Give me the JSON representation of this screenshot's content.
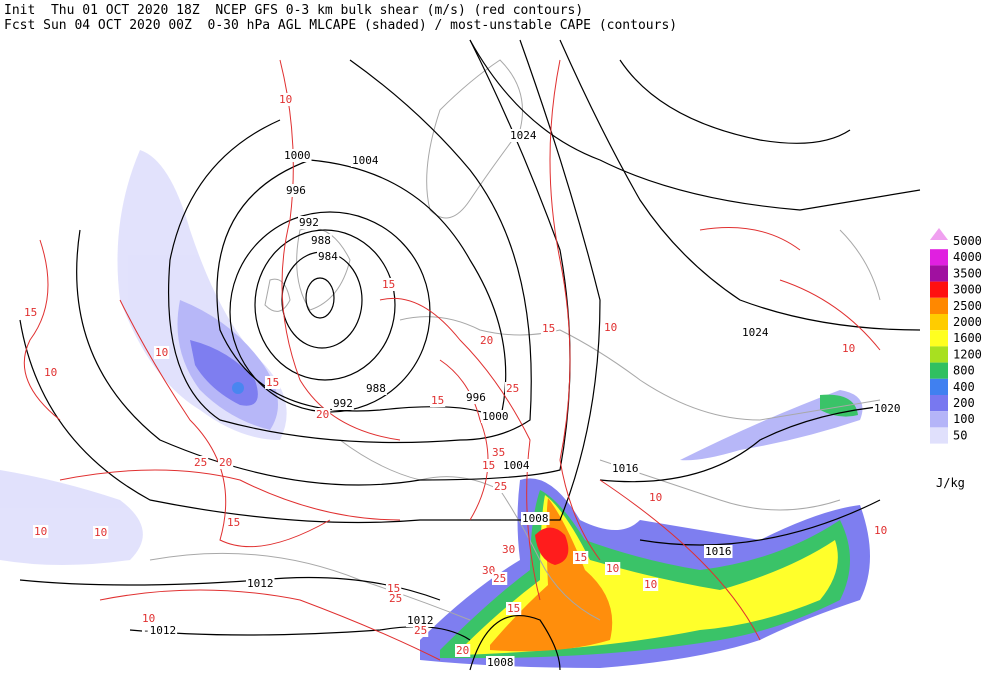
{
  "header": {
    "line1": "Init  Thu 01 OCT 2020 18Z  NCEP GFS 0-3 km bulk shear (m/s) (red contours)",
    "line2": "Fcst Sun 04 OCT 2020 00Z  0-30 hPa AGL MLCAPE (shaded) / most-unstable CAPE (contours)"
  },
  "legend": {
    "unit": "J/kg",
    "levels": [
      {
        "value": 5000,
        "color": "#f0a0f0"
      },
      {
        "value": 4000,
        "color": "#e020e0"
      },
      {
        "value": 3500,
        "color": "#a010a0"
      },
      {
        "value": 3000,
        "color": "#ff1010"
      },
      {
        "value": 2500,
        "color": "#ff8800"
      },
      {
        "value": 2000,
        "color": "#ffcc00"
      },
      {
        "value": 1600,
        "color": "#ffff20"
      },
      {
        "value": 1200,
        "color": "#a8e020"
      },
      {
        "value": 800,
        "color": "#30c060"
      },
      {
        "value": 400,
        "color": "#4080f0"
      },
      {
        "value": 200,
        "color": "#7878f0"
      },
      {
        "value": 100,
        "color": "#b4b4f8"
      },
      {
        "value": 50,
        "color": "#e0e0fc"
      }
    ]
  },
  "pressure_labels": [
    "1024",
    "1000",
    "1004",
    "996",
    "992",
    "988",
    "984",
    "1024",
    "1020",
    "988",
    "992",
    "996",
    "1000",
    "1004",
    "1016",
    "1008",
    "1016",
    "1012",
    "1012",
    "-1012",
    "1008"
  ],
  "shear_labels": [
    "10",
    "10",
    "15",
    "10",
    "10",
    "15",
    "20",
    "15",
    "20",
    "15",
    "25",
    "35",
    "15",
    "25",
    "10",
    "15",
    "30",
    "30",
    "25",
    "10",
    "10",
    "15",
    "25",
    "20",
    "15",
    "25",
    "10",
    "15",
    "10",
    "20",
    "25",
    "10",
    "10",
    "10",
    "15"
  ]
}
